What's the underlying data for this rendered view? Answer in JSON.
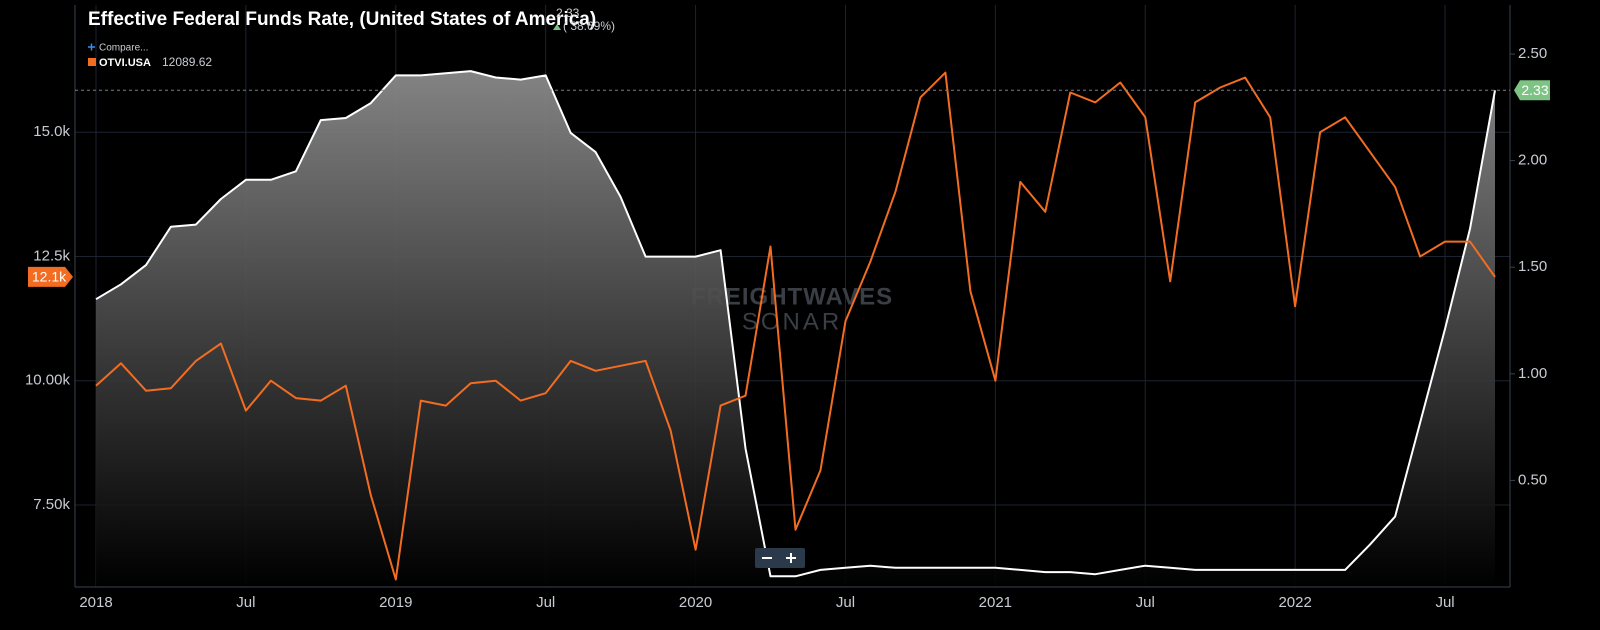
{
  "chart_data": {
    "type": "line",
    "title": "Effective Federal Funds Rate, (United States of America)",
    "change": "( 38.69%)",
    "compare": "Compare...",
    "watermark": [
      "FREIGHTWAVES",
      "SONAR"
    ],
    "x": [
      "2018-01",
      "2018-02",
      "2018-03",
      "2018-04",
      "2018-05",
      "2018-06",
      "2018-07",
      "2018-08",
      "2018-09",
      "2018-10",
      "2018-11",
      "2018-12",
      "2019-01",
      "2019-02",
      "2019-03",
      "2019-04",
      "2019-05",
      "2019-06",
      "2019-07",
      "2019-08",
      "2019-09",
      "2019-10",
      "2019-11",
      "2019-12",
      "2020-01",
      "2020-02",
      "2020-03",
      "2020-04",
      "2020-05",
      "2020-06",
      "2020-07",
      "2020-08",
      "2020-09",
      "2020-10",
      "2020-11",
      "2020-12",
      "2021-01",
      "2021-02",
      "2021-03",
      "2021-04",
      "2021-05",
      "2021-06",
      "2021-07",
      "2021-08",
      "2021-09",
      "2021-10",
      "2021-11",
      "2021-12",
      "2022-01",
      "2022-02",
      "2022-03",
      "2022-04",
      "2022-05",
      "2022-06",
      "2022-07",
      "2022-08",
      "2022-09"
    ],
    "xticks": [
      {
        "value": "2018-01",
        "label": "2018"
      },
      {
        "value": "2018-07",
        "label": "Jul"
      },
      {
        "value": "2019-01",
        "label": "2019"
      },
      {
        "value": "2019-07",
        "label": "Jul"
      },
      {
        "value": "2020-01",
        "label": "2020"
      },
      {
        "value": "2020-07",
        "label": "Jul"
      },
      {
        "value": "2021-01",
        "label": "2021"
      },
      {
        "value": "2021-07",
        "label": "Jul"
      },
      {
        "value": "2022-01",
        "label": "2022"
      },
      {
        "value": "2022-07",
        "label": "Jul"
      }
    ],
    "ylim": [
      5850,
      17560
    ],
    "yticks": [
      {
        "value": 7500,
        "label": "7.50k"
      },
      {
        "value": 10000,
        "label": "10.00k"
      },
      {
        "value": 12500,
        "label": "12.5k"
      },
      {
        "value": 15000,
        "label": "15.0k"
      }
    ],
    "y2lim": [
      0,
      2.73
    ],
    "y2ticks": [
      {
        "value": 0.5,
        "label": "0.50"
      },
      {
        "value": 1,
        "label": "1.00"
      },
      {
        "value": 1.5,
        "label": "1.50"
      },
      {
        "value": 2,
        "label": "2.00"
      },
      {
        "value": 2.5,
        "label": "2.50"
      }
    ],
    "grid": true,
    "series": [
      {
        "name": "OTVI.USA",
        "color": "#f26d21",
        "last_label": "12.1k",
        "values": [
          9900,
          10350,
          9800,
          9850,
          10400,
          10750,
          9400,
          10000,
          9650,
          9600,
          9900,
          7700,
          6000,
          9600,
          9500,
          9950,
          10000,
          9600,
          9750,
          10400,
          10200,
          10300,
          10400,
          9000,
          6600,
          9500,
          9700,
          12700,
          7000,
          8200,
          11200,
          12400,
          13800,
          15700,
          16200,
          11800,
          10000,
          14000,
          13400,
          15800,
          15600,
          16000,
          15300,
          12000,
          15600,
          15900,
          16100,
          15300,
          11500,
          15000,
          15300,
          14600,
          13900,
          12500,
          12800,
          12800,
          12089.62
        ]
      },
      {
        "color": "#ffffff",
        "tag_color": "#7dc383",
        "axis": "y2",
        "values": [
          1.35,
          1.42,
          1.51,
          1.69,
          1.7,
          1.82,
          1.91,
          1.91,
          1.95,
          2.19,
          2.2,
          2.27,
          2.4,
          2.4,
          2.41,
          2.42,
          2.39,
          2.38,
          2.4,
          2.13,
          2.04,
          1.83,
          1.55,
          1.55,
          1.55,
          1.58,
          0.65,
          0.05,
          0.05,
          0.08,
          0.09,
          0.1,
          0.09,
          0.09,
          0.09,
          0.09,
          0.09,
          0.08,
          0.07,
          0.07,
          0.06,
          0.08,
          0.1,
          0.09,
          0.08,
          0.08,
          0.08,
          0.08,
          0.08,
          0.08,
          0.08,
          0.2,
          0.33,
          0.77,
          1.21,
          1.68,
          2.33
        ]
      }
    ]
  }
}
